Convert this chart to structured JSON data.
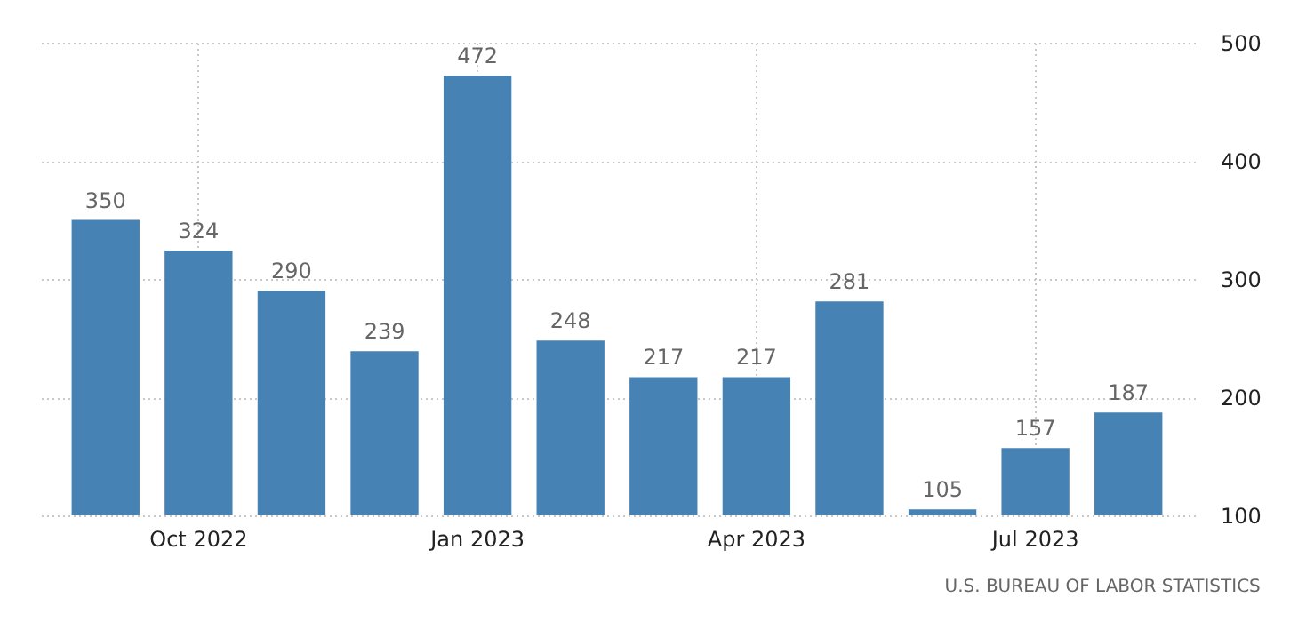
{
  "chart_data": {
    "type": "bar",
    "categories": [
      null,
      "Oct 2022",
      null,
      null,
      "Jan 2023",
      null,
      null,
      "Apr 2023",
      null,
      null,
      "Jul 2023",
      null
    ],
    "values": [
      350,
      324,
      290,
      239,
      472,
      248,
      217,
      217,
      281,
      105,
      157,
      187
    ],
    "color": "#4682b4",
    "ylim": [
      100,
      500
    ],
    "yticks": [
      100,
      200,
      300,
      400,
      500
    ],
    "grid": true,
    "data_labels": true,
    "annotations": [
      "U.S. BUREAU OF LABOR STATISTICS"
    ]
  }
}
